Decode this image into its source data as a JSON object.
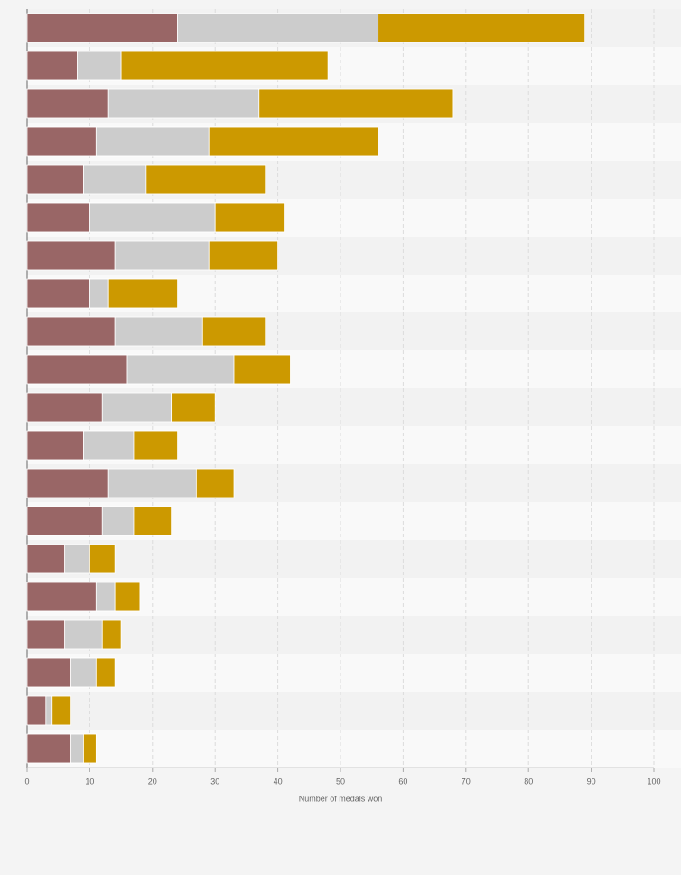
{
  "chart_data": {
    "type": "stacked-bar-horizontal",
    "x_label": "Number of medals won",
    "categories": [
      null,
      null,
      null,
      null,
      null,
      null,
      null,
      null,
      null,
      null,
      null,
      null,
      null,
      null,
      null,
      null,
      null,
      null,
      null,
      null
    ],
    "series": [
      {
        "color": "#996666",
        "values": [
          24,
          8,
          13,
          11,
          9,
          10,
          14,
          10,
          14,
          16,
          12,
          9,
          13,
          12,
          6,
          11,
          6,
          7,
          3,
          7
        ]
      },
      {
        "color": "#cccccc",
        "values": [
          32,
          7,
          24,
          18,
          10,
          20,
          15,
          3,
          14,
          17,
          11,
          8,
          14,
          5,
          4,
          3,
          6,
          4,
          1,
          2
        ]
      },
      {
        "color": "#cc9900",
        "values": [
          33,
          33,
          31,
          27,
          19,
          11,
          11,
          11,
          10,
          9,
          7,
          7,
          6,
          6,
          4,
          4,
          3,
          3,
          3,
          2
        ]
      }
    ],
    "xlim": [
      0,
      100
    ],
    "xticks": [
      0,
      10,
      20,
      30,
      40,
      50,
      60,
      70,
      80,
      90,
      100
    ],
    "grid": true
  }
}
